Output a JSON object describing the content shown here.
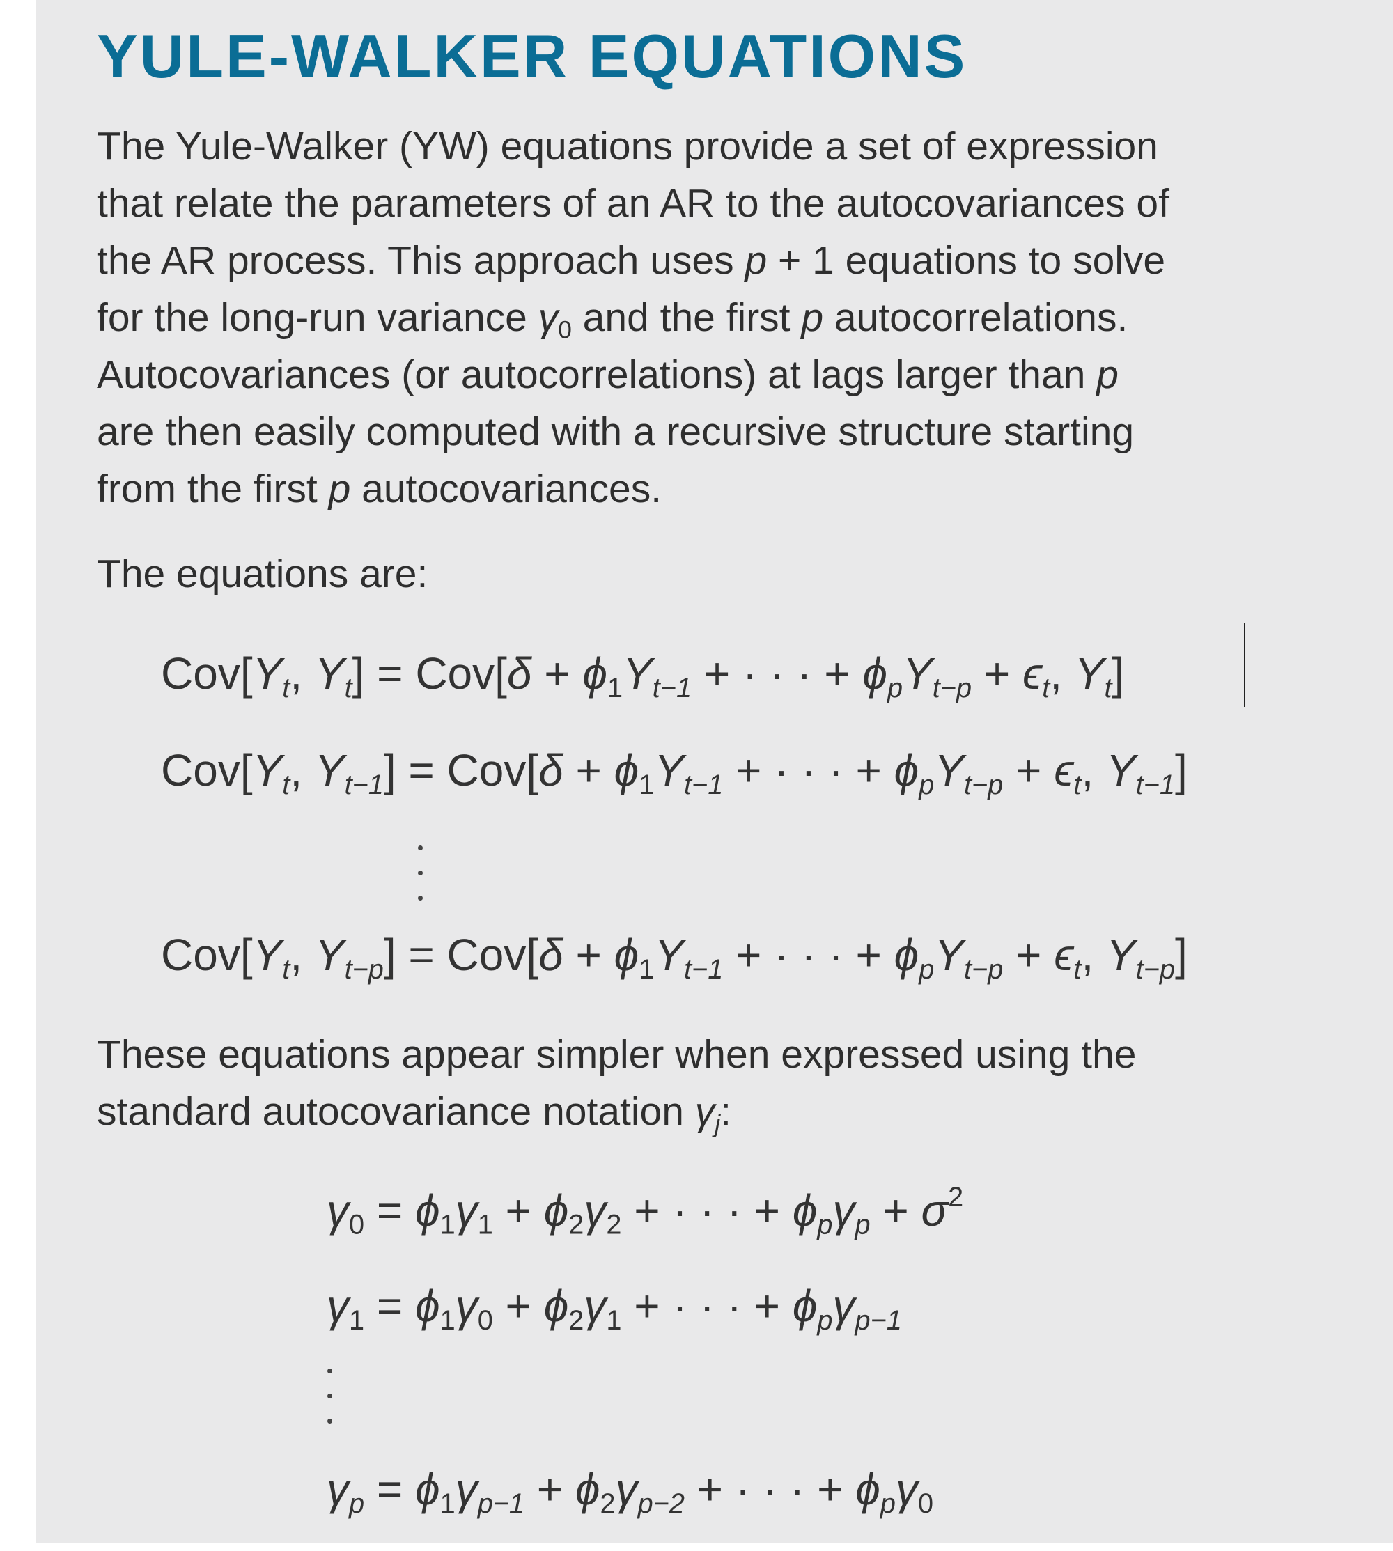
{
  "title": "YULE-WALKER EQUATIONS",
  "intro_lines": [
    [
      [
        "The Yule-Walker (YW) equations provide a set of expression",
        ""
      ]
    ],
    [
      [
        "that relate the parameters of an AR to the autocovariances of",
        ""
      ]
    ],
    [
      [
        "the AR process. This approach uses ",
        ""
      ],
      [
        "p",
        "i"
      ],
      [
        " + 1 equations to solve",
        ""
      ]
    ],
    [
      [
        "for the long-run variance ",
        ""
      ],
      [
        "γ",
        "i"
      ],
      [
        "0",
        "s"
      ],
      [
        " and the first ",
        ""
      ],
      [
        "p",
        "i"
      ],
      [
        " autocorrelations.",
        ""
      ]
    ],
    [
      [
        "Autocovariances (or autocorrelations) at lags larger than ",
        ""
      ],
      [
        "p",
        "i"
      ]
    ],
    [
      [
        "are then easily computed with a recursive structure starting",
        ""
      ]
    ],
    [
      [
        "from the first ",
        ""
      ],
      [
        "p",
        "i"
      ],
      [
        " autocovariances.",
        ""
      ]
    ]
  ],
  "equations_intro": [
    [
      [
        "The equations are:",
        ""
      ]
    ]
  ],
  "cov_equations": [
    [
      [
        "Cov[",
        ""
      ],
      [
        "Y",
        "i"
      ],
      [
        "t",
        "si"
      ],
      [
        ", ",
        ""
      ],
      [
        "Y",
        "i"
      ],
      [
        "t",
        "si"
      ],
      [
        "] = Cov[",
        ""
      ],
      [
        "δ",
        "i"
      ],
      [
        " + ",
        ""
      ],
      [
        "ϕ",
        "i"
      ],
      [
        "1",
        "s"
      ],
      [
        "Y",
        "i"
      ],
      [
        "t−1",
        "si"
      ],
      [
        " + · · · + ",
        ""
      ],
      [
        "ϕ",
        "i"
      ],
      [
        "p",
        "si"
      ],
      [
        "Y",
        "i"
      ],
      [
        "t−p",
        "si"
      ],
      [
        " + ",
        ""
      ],
      [
        "ϵ",
        "i"
      ],
      [
        "t",
        "si"
      ],
      [
        ", ",
        ""
      ],
      [
        "Y",
        "i"
      ],
      [
        "t",
        "si"
      ],
      [
        "]",
        ""
      ]
    ],
    [
      [
        "Cov[",
        ""
      ],
      [
        "Y",
        "i"
      ],
      [
        "t",
        "si"
      ],
      [
        ", ",
        ""
      ],
      [
        "Y",
        "i"
      ],
      [
        "t−1",
        "si"
      ],
      [
        "] = Cov[",
        ""
      ],
      [
        "δ",
        "i"
      ],
      [
        " + ",
        ""
      ],
      [
        "ϕ",
        "i"
      ],
      [
        "1",
        "s"
      ],
      [
        "Y",
        "i"
      ],
      [
        "t−1",
        "si"
      ],
      [
        " + · · · + ",
        ""
      ],
      [
        "ϕ",
        "i"
      ],
      [
        "p",
        "si"
      ],
      [
        "Y",
        "i"
      ],
      [
        "t−p",
        "si"
      ],
      [
        " + ",
        ""
      ],
      [
        "ϵ",
        "i"
      ],
      [
        "t",
        "si"
      ],
      [
        ", ",
        ""
      ],
      [
        "Y",
        "i"
      ],
      [
        "t−1",
        "si"
      ],
      [
        "]",
        ""
      ]
    ],
    [
      [
        "Cov[",
        ""
      ],
      [
        "Y",
        "i"
      ],
      [
        "t",
        "si"
      ],
      [
        ", ",
        ""
      ],
      [
        "Y",
        "i"
      ],
      [
        "t−p",
        "si"
      ],
      [
        "] = Cov[",
        ""
      ],
      [
        "δ",
        "i"
      ],
      [
        " + ",
        ""
      ],
      [
        "ϕ",
        "i"
      ],
      [
        "1",
        "s"
      ],
      [
        "Y",
        "i"
      ],
      [
        "t−1",
        "si"
      ],
      [
        " + · · · + ",
        ""
      ],
      [
        "ϕ",
        "i"
      ],
      [
        "p",
        "si"
      ],
      [
        "Y",
        "i"
      ],
      [
        "t−p",
        "si"
      ],
      [
        " + ",
        ""
      ],
      [
        "ϵ",
        "i"
      ],
      [
        "t",
        "si"
      ],
      [
        ", ",
        ""
      ],
      [
        "Y",
        "i"
      ],
      [
        "t−p",
        "si"
      ],
      [
        "]",
        ""
      ]
    ]
  ],
  "notation_lines": [
    [
      [
        "These equations appear simpler when expressed using the",
        ""
      ]
    ],
    [
      [
        "standard autocovariance notation ",
        ""
      ],
      [
        "γ",
        "i"
      ],
      [
        "j",
        "si"
      ],
      [
        ":",
        ""
      ]
    ]
  ],
  "gamma_equations": [
    [
      [
        "γ",
        "i"
      ],
      [
        "0",
        "s"
      ],
      [
        " = ",
        ""
      ],
      [
        "ϕ",
        "i"
      ],
      [
        "1",
        "s"
      ],
      [
        "γ",
        "i"
      ],
      [
        "1",
        "s"
      ],
      [
        " + ",
        ""
      ],
      [
        "ϕ",
        "i"
      ],
      [
        "2",
        "s"
      ],
      [
        "γ",
        "i"
      ],
      [
        "2",
        "s"
      ],
      [
        " + · · · + ",
        ""
      ],
      [
        "ϕ",
        "i"
      ],
      [
        "p",
        "si"
      ],
      [
        "γ",
        "i"
      ],
      [
        "p",
        "si"
      ],
      [
        " + ",
        ""
      ],
      [
        "σ",
        "i"
      ],
      [
        "2",
        "sup"
      ]
    ],
    [
      [
        "γ",
        "i"
      ],
      [
        "1",
        "s"
      ],
      [
        " = ",
        ""
      ],
      [
        "ϕ",
        "i"
      ],
      [
        "1",
        "s"
      ],
      [
        "γ",
        "i"
      ],
      [
        "0",
        "s"
      ],
      [
        " + ",
        ""
      ],
      [
        "ϕ",
        "i"
      ],
      [
        "2",
        "s"
      ],
      [
        "γ",
        "i"
      ],
      [
        "1",
        "s"
      ],
      [
        " + · · · + ",
        ""
      ],
      [
        "ϕ",
        "i"
      ],
      [
        "p",
        "si"
      ],
      [
        "γ",
        "i"
      ],
      [
        "p−1",
        "si"
      ]
    ],
    [
      [
        "γ",
        "i"
      ],
      [
        "p",
        "si"
      ],
      [
        " = ",
        ""
      ],
      [
        "ϕ",
        "i"
      ],
      [
        "1",
        "s"
      ],
      [
        "γ",
        "i"
      ],
      [
        "p−1",
        "si"
      ],
      [
        " + ",
        ""
      ],
      [
        "ϕ",
        "i"
      ],
      [
        "2",
        "s"
      ],
      [
        "γ",
        "i"
      ],
      [
        "p−2",
        "si"
      ],
      [
        " + · · · + ",
        ""
      ],
      [
        "ϕ",
        "i"
      ],
      [
        "p",
        "si"
      ],
      [
        "γ",
        "i"
      ],
      [
        "0",
        "s"
      ]
    ]
  ]
}
